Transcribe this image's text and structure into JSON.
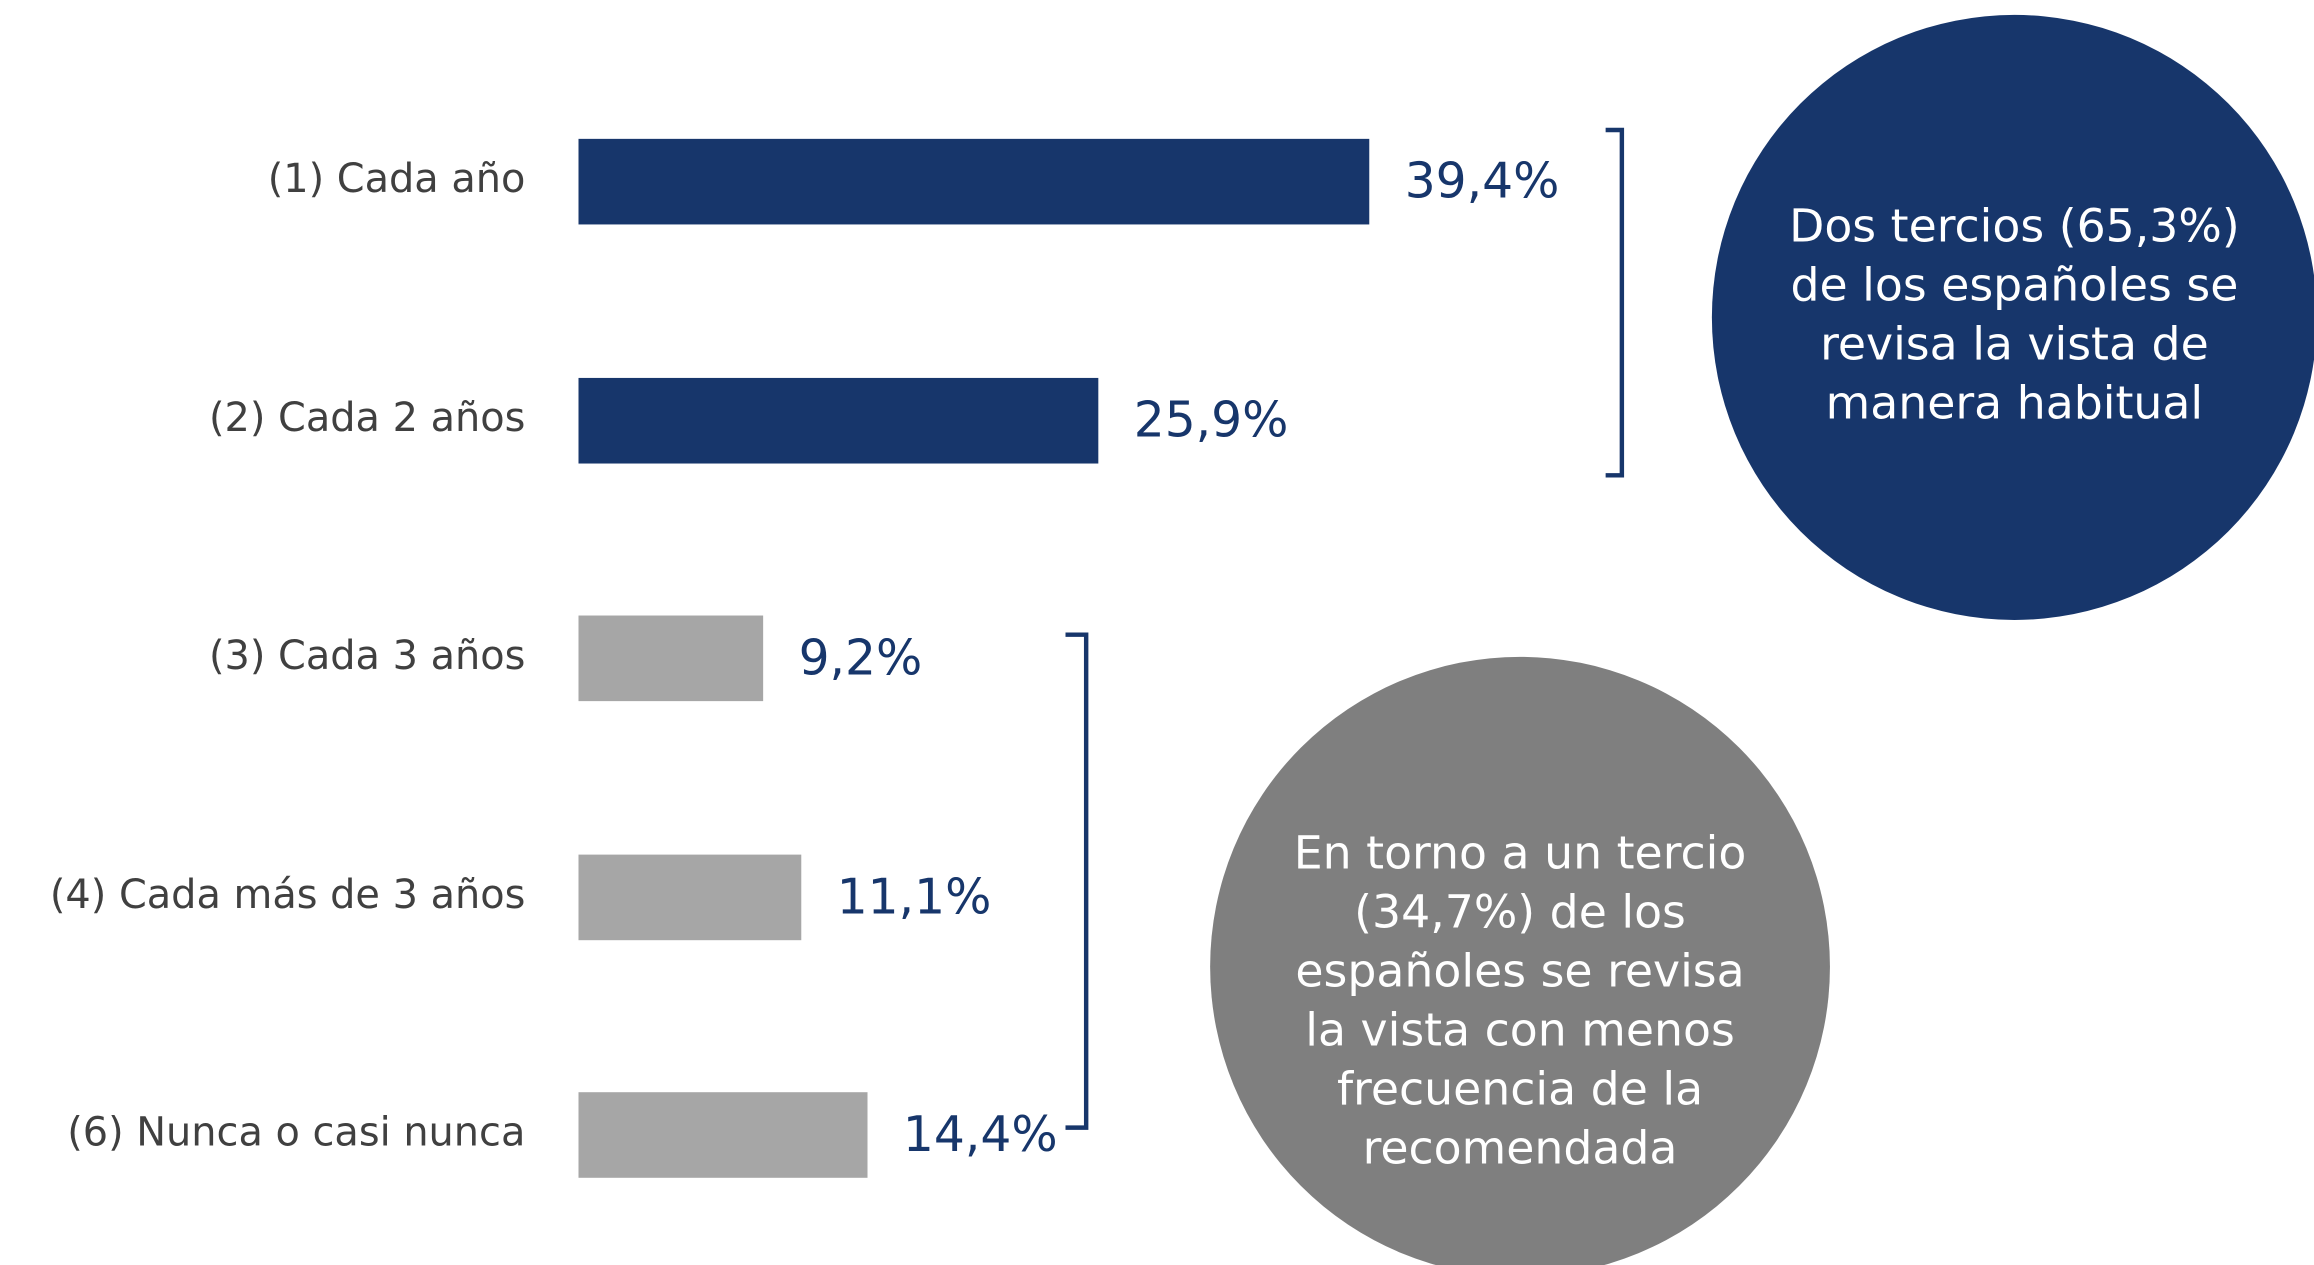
{
  "chart_data": {
    "type": "barh",
    "categories": [
      "(1) Cada año",
      "(2) Cada 2 años",
      "(3) Cada 3 años",
      "(4) Cada más de 3 años",
      "(6) Nunca o casi nunca"
    ],
    "values": [
      39.4,
      25.9,
      9.2,
      11.1,
      14.4
    ],
    "value_labels": [
      "39,4%",
      "25,9%",
      "9,2%",
      "11,1%",
      "14,4%"
    ],
    "colors": [
      "#17366b",
      "#17366b",
      "#a6a6a6",
      "#a6a6a6",
      "#a6a6a6"
    ],
    "annotations": [
      {
        "lines": [
          "Dos tercios (65,3%)",
          "de los españoles se",
          "revisa la vista de",
          "manera habitual"
        ],
        "color": "#17366b"
      },
      {
        "lines": [
          "En torno a un tercio",
          "(34,7%) de los",
          "españoles se revisa",
          "la vista con menos",
          "frecuencia de la",
          "recomendada"
        ],
        "color": "#7f7f7f"
      }
    ]
  }
}
